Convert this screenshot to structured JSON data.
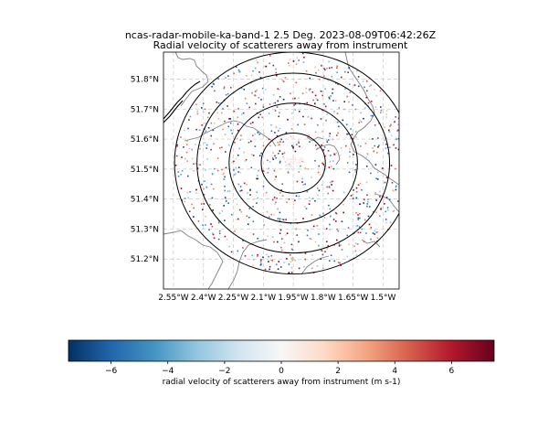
{
  "chart_data": {
    "type": "scatter",
    "title": "ncas-radar-mobile-ka-band-1 2.5 Deg. 2023-08-09T06:42:26Z",
    "subtitle": "Radial velocity of scatterers away from instrument",
    "x_ticks": [
      "2.55°W",
      "2.4°W",
      "2.25°W",
      "2.1°W",
      "1.95°W",
      "1.8°W",
      "1.65°W",
      "1.5°W"
    ],
    "y_ticks": [
      "51.8°N",
      "51.7°N",
      "51.6°N",
      "51.5°N",
      "51.4°N",
      "51.3°N",
      "51.2°N"
    ],
    "x_tick_values": [
      -2.55,
      -2.4,
      -2.25,
      -2.1,
      -1.95,
      -1.8,
      -1.65,
      -1.5
    ],
    "y_tick_values": [
      51.8,
      51.7,
      51.6,
      51.5,
      51.4,
      51.3,
      51.2
    ],
    "xlim": [
      -2.6,
      -1.42
    ],
    "ylim": [
      51.1,
      51.89
    ],
    "grid": true,
    "range_rings": [
      {
        "radius_deg_lat": 0.1
      },
      {
        "radius_deg_lat": 0.2
      },
      {
        "radius_deg_lat": 0.3
      },
      {
        "radius_deg_lat": 0.37
      }
    ],
    "radar_location": {
      "lon": -1.95,
      "lat": 51.52
    },
    "colorbar": {
      "label": "radial velocity of scatterers away from instrument (m s-1)",
      "ticks": [
        "−6",
        "−4",
        "−2",
        "0",
        "2",
        "4",
        "6"
      ],
      "tick_values": [
        -6,
        -4,
        -2,
        0,
        2,
        4,
        6
      ],
      "range": [
        -7.5,
        7.5
      ],
      "colormap": [
        "#053061",
        "#2166ac",
        "#4393c3",
        "#92c5de",
        "#d1e5f0",
        "#f7f7f7",
        "#fddbc7",
        "#f4a582",
        "#d6604d",
        "#b2182b",
        "#67001f"
      ]
    },
    "colors": {
      "coastline": "#000000",
      "borders": "#808080",
      "rings": "#000000",
      "grid": "#c8c8c8"
    }
  }
}
